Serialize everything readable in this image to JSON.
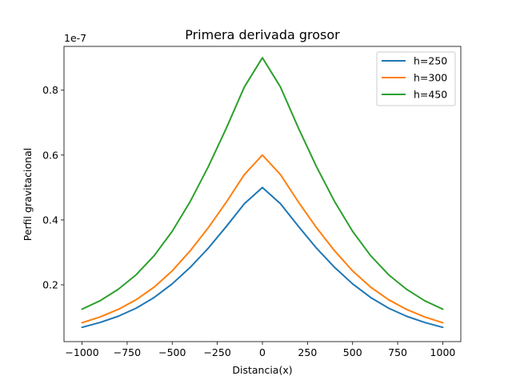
{
  "chart_data": {
    "type": "line",
    "title": "Primera derivada grosor",
    "xlabel": "Distancia(x)",
    "ylabel": "Perfil gravitacional",
    "y_offset_label": "1e-7",
    "xlim": [
      -1100,
      1100
    ],
    "ylim": [
      0.025,
      0.935
    ],
    "x_ticks": [
      -1000,
      -750,
      -500,
      -250,
      0,
      250,
      500,
      750,
      1000
    ],
    "x_tick_labels": [
      "−1000",
      "−750",
      "−500",
      "−250",
      "0",
      "250",
      "500",
      "750",
      "1000"
    ],
    "y_ticks": [
      0.2,
      0.4,
      0.6,
      0.8
    ],
    "y_tick_labels": [
      "0.2",
      "0.4",
      "0.6",
      "0.8"
    ],
    "grid": false,
    "legend_position": "top-right",
    "x": [
      -1000,
      -900,
      -800,
      -700,
      -600,
      -500,
      -400,
      -300,
      -200,
      -100,
      0,
      100,
      200,
      300,
      400,
      500,
      600,
      700,
      800,
      900,
      1000
    ],
    "series": [
      {
        "name": "h=250",
        "color": "#1f77b4",
        "values": [
          0.069,
          0.084,
          0.103,
          0.128,
          0.161,
          0.203,
          0.254,
          0.313,
          0.38,
          0.45,
          0.5,
          0.45,
          0.38,
          0.313,
          0.254,
          0.203,
          0.161,
          0.128,
          0.103,
          0.084,
          0.069
        ]
      },
      {
        "name": "h=300",
        "color": "#ff7f0e",
        "values": [
          0.083,
          0.101,
          0.124,
          0.154,
          0.193,
          0.243,
          0.305,
          0.376,
          0.455,
          0.54,
          0.6,
          0.54,
          0.455,
          0.376,
          0.305,
          0.243,
          0.193,
          0.154,
          0.124,
          0.101,
          0.083
        ]
      },
      {
        "name": "h=450",
        "color": "#2ca02c",
        "values": [
          0.125,
          0.151,
          0.186,
          0.231,
          0.29,
          0.365,
          0.457,
          0.564,
          0.683,
          0.81,
          0.9,
          0.81,
          0.683,
          0.564,
          0.457,
          0.365,
          0.29,
          0.231,
          0.186,
          0.151,
          0.125
        ]
      }
    ]
  }
}
